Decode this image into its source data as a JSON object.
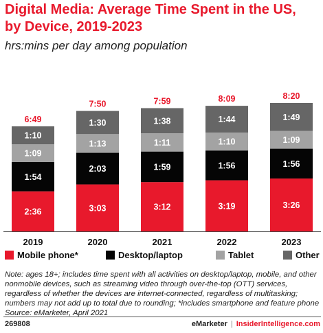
{
  "header": {
    "title": "Digital Media: Average Time Spent in the US, by Device, 2019-2023",
    "subtitle": "hrs:mins per day among population"
  },
  "chart_data": {
    "type": "bar",
    "stacked": true,
    "categories": [
      "2019",
      "2020",
      "2021",
      "2022",
      "2023"
    ],
    "totals": [
      "6:49",
      "7:50",
      "7:59",
      "8:09",
      "8:20"
    ],
    "series": [
      {
        "name": "Mobile phone*",
        "color": "#e8192c",
        "label_color": "#ffffff",
        "labels": [
          "2:36",
          "3:03",
          "3:12",
          "3:19",
          "3:26"
        ],
        "values_minutes": [
          156,
          183,
          192,
          199,
          206
        ]
      },
      {
        "name": "Desktop/laptop",
        "color": "#050505",
        "label_color": "#ffffff",
        "labels": [
          "1:54",
          "2:03",
          "1:59",
          "1:56",
          "1:56"
        ],
        "values_minutes": [
          114,
          123,
          119,
          116,
          116
        ]
      },
      {
        "name": "Tablet",
        "color": "#a3a3a3",
        "label_color": "#ffffff",
        "labels": [
          "1:09",
          "1:13",
          "1:11",
          "1:10",
          "1:09"
        ],
        "values_minutes": [
          69,
          73,
          71,
          70,
          69
        ]
      },
      {
        "name": "Other",
        "color": "#666666",
        "label_color": "#ffffff",
        "labels": [
          "1:10",
          "1:30",
          "1:38",
          "1:44",
          "1:49"
        ],
        "values_minutes": [
          70,
          90,
          98,
          104,
          109
        ]
      }
    ],
    "total_color": "#e8192c",
    "legend_position": "bottom",
    "grid": false
  },
  "note": "Note: ages 18+; includes time spent with all activities on desktop/laptop, mobile, and other nonmobile devices, such as streaming video through over-the-top (OTT) services, regardless of whether the devices are internet-connected, regardless of multitasking; numbers may not add up to total due to rounding; *includes smartphone and feature phone",
  "source": "Source: eMarketer, April 2021",
  "footer": {
    "chart_id": "269808",
    "brand": "eMarketer",
    "separator": "|",
    "site": "InsiderIntelligence.com"
  }
}
